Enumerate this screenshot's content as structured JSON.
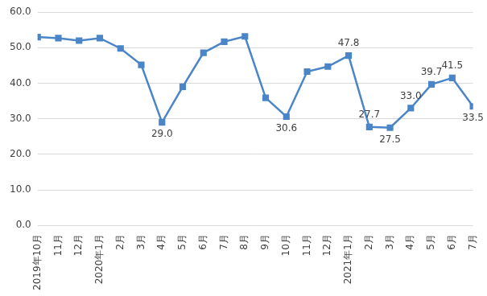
{
  "chart_data": {
    "type": "line",
    "categories": [
      "2019年10月",
      "11月",
      "12月",
      "2020年1月",
      "2月",
      "3月",
      "4月",
      "5月",
      "6月",
      "7月",
      "8月",
      "9月",
      "10月",
      "11月",
      "12月",
      "2021年1月",
      "2月",
      "3月",
      "4月",
      "5月",
      "6月",
      "7月"
    ],
    "values": [
      53.0,
      52.7,
      52.0,
      52.7,
      49.8,
      45.2,
      29.0,
      39.0,
      48.6,
      51.7,
      53.2,
      35.9,
      30.6,
      43.3,
      44.7,
      47.8,
      27.7,
      27.5,
      33.0,
      39.7,
      41.5,
      33.5
    ],
    "value_labels": [
      null,
      null,
      null,
      null,
      null,
      null,
      "29.0",
      null,
      null,
      null,
      null,
      null,
      "30.6",
      null,
      null,
      "47.8",
      "27.7",
      "27.5",
      "33.0",
      "39.7",
      "41.5",
      "33.5"
    ],
    "data_labels": true,
    "color": "#4a86c7",
    "marker": "square",
    "ylim": [
      0,
      60
    ],
    "yticks": [
      {
        "value": 0,
        "label": "0.0"
      },
      {
        "value": 10,
        "label": "10.0"
      },
      {
        "value": 20,
        "label": "20.0"
      },
      {
        "value": 30,
        "label": "30.0"
      },
      {
        "value": 40,
        "label": "40.0"
      },
      {
        "value": 50,
        "label": "50.0"
      },
      {
        "value": 60,
        "label": "60.0"
      }
    ],
    "grid": true
  }
}
